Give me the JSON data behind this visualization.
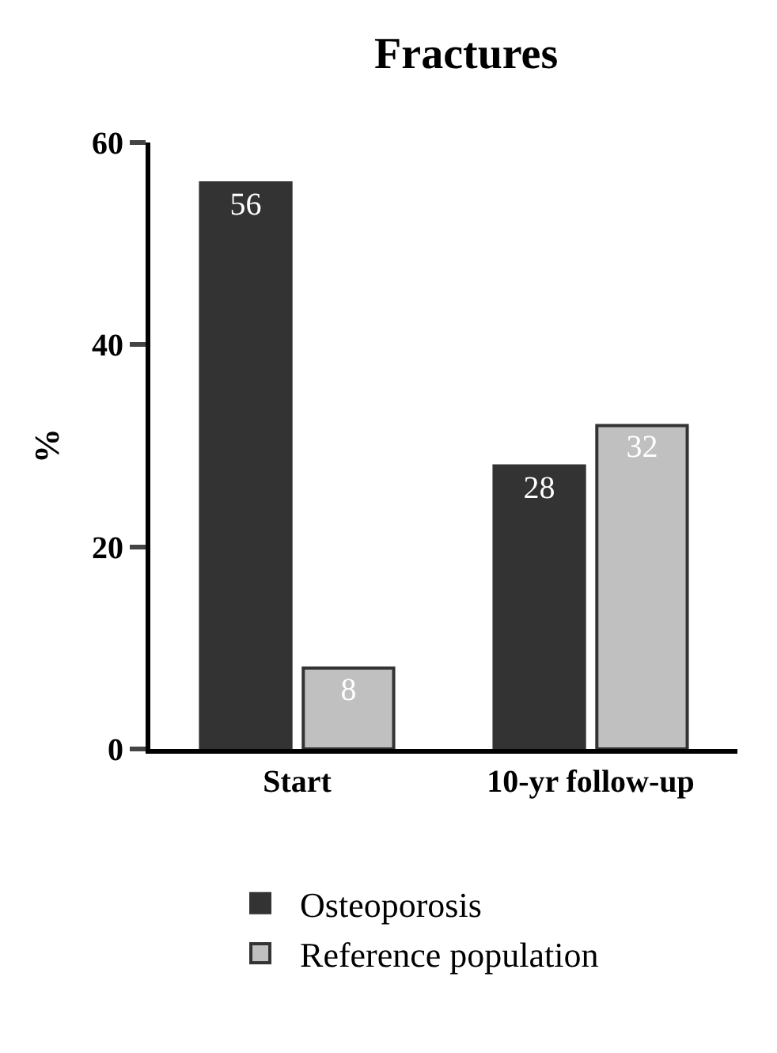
{
  "chart_data": {
    "type": "bar",
    "title": "Fractures",
    "ylabel": "%",
    "categories": [
      "Start",
      "10-yr follow-up"
    ],
    "series": [
      {
        "name": "Osteoporosis",
        "color": "#333333",
        "values": [
          56,
          28
        ]
      },
      {
        "name": "Reference population",
        "color": "#c0c0c0",
        "values": [
          8,
          32
        ]
      }
    ],
    "ylim": [
      0,
      60
    ],
    "yticks": [
      0,
      20,
      40,
      60
    ],
    "legend": "bottom",
    "data_labels": true
  }
}
